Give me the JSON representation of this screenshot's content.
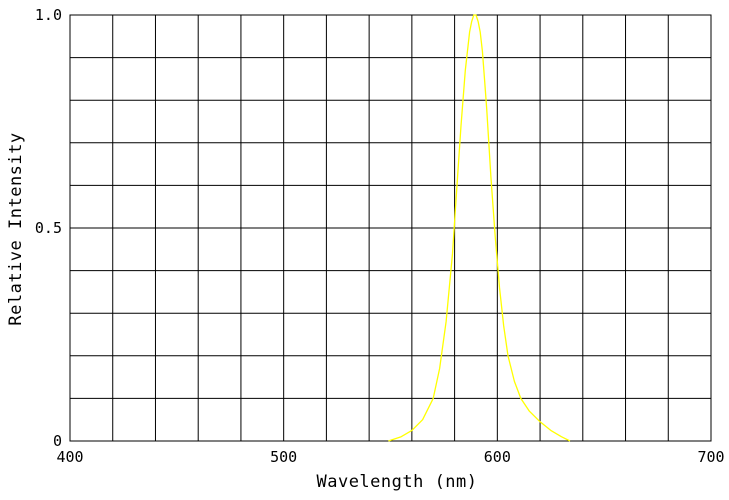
{
  "chart_data": {
    "type": "line",
    "xlabel": "Wavelength (nm)",
    "ylabel": "Relative Intensity",
    "xlim": [
      400,
      700
    ],
    "ylim": [
      0,
      1.0
    ],
    "x_ticks": [
      400,
      500,
      600,
      700
    ],
    "x_tick_labels": [
      "400",
      "500",
      "600",
      "700"
    ],
    "y_ticks": [
      0,
      0.5,
      1.0
    ],
    "y_tick_labels": [
      "0",
      "0.5",
      "1.0"
    ],
    "grid": true,
    "grid_x_step": 20,
    "grid_y_step": 0.1,
    "series": [
      {
        "color": "#ffff00",
        "x": [
          549,
          555,
          560,
          565,
          570,
          573,
          576,
          579,
          581,
          583,
          585,
          587,
          588,
          589,
          590,
          591,
          592,
          593,
          594,
          595,
          597,
          599,
          601,
          603,
          605,
          608,
          611,
          615,
          620,
          625,
          630,
          634
        ],
        "y": [
          0.0,
          0.01,
          0.025,
          0.05,
          0.1,
          0.17,
          0.28,
          0.44,
          0.59,
          0.74,
          0.87,
          0.96,
          0.985,
          1.0,
          1.0,
          0.985,
          0.96,
          0.915,
          0.85,
          0.78,
          0.62,
          0.48,
          0.36,
          0.27,
          0.2,
          0.14,
          0.1,
          0.07,
          0.045,
          0.025,
          0.01,
          0.0
        ]
      }
    ]
  }
}
